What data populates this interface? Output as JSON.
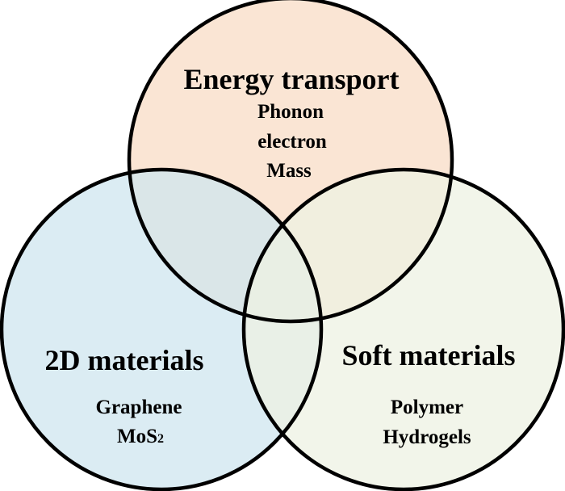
{
  "diagram": {
    "type": "venn",
    "colors": {
      "top": "#f9e0cc",
      "left": "#cfe5ef",
      "right": "#edf2e3",
      "outline": "#000000"
    },
    "circles": [
      {
        "id": "top",
        "title": "Energy transport",
        "items": [
          "Phonon",
          "electron",
          "Mass"
        ]
      },
      {
        "id": "left",
        "title": "2D materials",
        "items": [
          "Graphene"
        ],
        "formula": {
          "base": "MoS",
          "subscript": "2"
        }
      },
      {
        "id": "right",
        "title": "Soft materials",
        "items": [
          "Polymer",
          "Hydrogels"
        ]
      }
    ]
  }
}
